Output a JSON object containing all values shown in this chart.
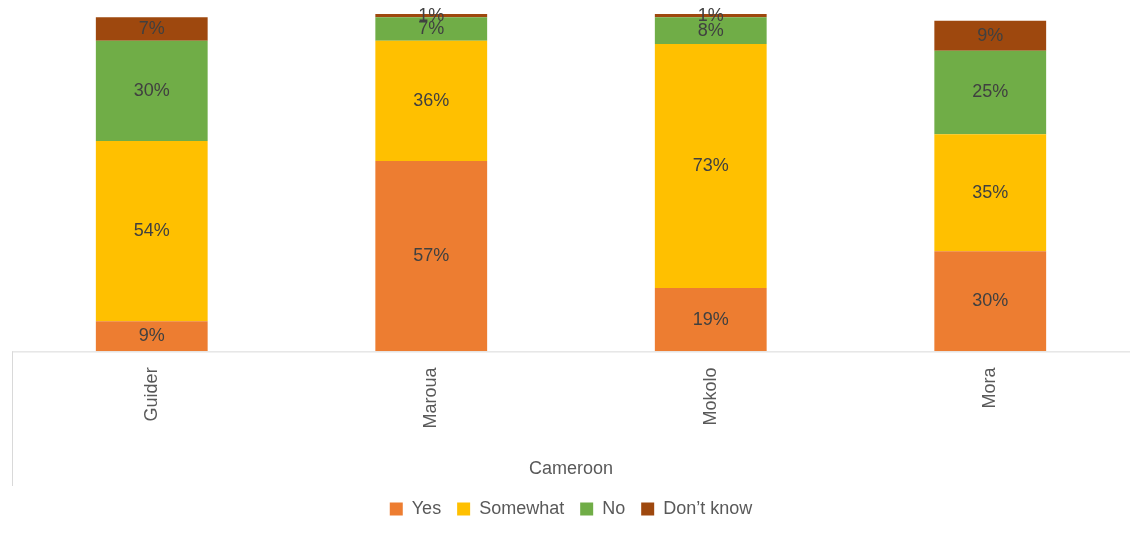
{
  "chart_data": {
    "type": "bar",
    "stacked": true,
    "xlabel": "Cameroon",
    "categories": [
      "Guider",
      "Maroua",
      "Mokolo",
      "Mora"
    ],
    "series": [
      {
        "name": "Yes",
        "color": "#ed7d31",
        "values": [
          9,
          57,
          19,
          30
        ],
        "value_labels": [
          "9%",
          "57%",
          "19%",
          "30%"
        ]
      },
      {
        "name": "Somewhat",
        "color": "#ffc000",
        "values": [
          54,
          36,
          73,
          35
        ],
        "value_labels": [
          "54%",
          "36%",
          "73%",
          "35%"
        ]
      },
      {
        "name": "No",
        "color": "#70ad47",
        "values": [
          30,
          7,
          8,
          25
        ],
        "value_labels": [
          "30%",
          "7%",
          "8%",
          "25%"
        ]
      },
      {
        "name": "Don’t know",
        "color": "#9e480e",
        "values": [
          7,
          1,
          1,
          9
        ],
        "value_labels": [
          "7%",
          "1%",
          "1%",
          "9%"
        ]
      }
    ],
    "grid": false,
    "legend": "bottom"
  }
}
